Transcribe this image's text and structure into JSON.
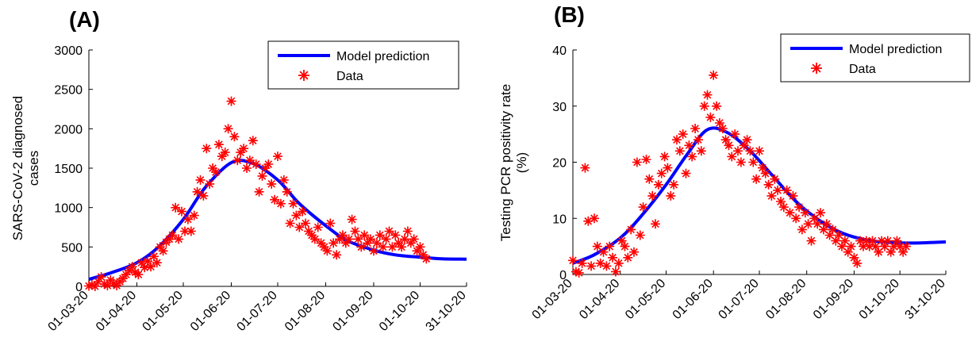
{
  "colors": {
    "model": "#0000ff",
    "data": "#ff0000",
    "axis": "#000000"
  },
  "chart_data": [
    {
      "type": "line",
      "panel_label": "(A)",
      "xlabel": "",
      "ylabel": [
        "SARS-CoV-2 diagnosed",
        "cases"
      ],
      "x_ticks": [
        "01-03-20",
        "01-04-20",
        "01-05-20",
        "01-06-20",
        "01-07-20",
        "01-08-20",
        "01-09-20",
        "01-10-20",
        "31-10-20"
      ],
      "y_ticks": [
        "0",
        "500",
        "1000",
        "1500",
        "2000",
        "2500",
        "3000"
      ],
      "xlim": [
        "2020-03-01",
        "2020-10-31"
      ],
      "ylim": [
        0,
        3000
      ],
      "legend": {
        "position": "top-right",
        "entries": [
          "Model prediction",
          "Data"
        ]
      },
      "series": [
        {
          "name": "Model prediction",
          "style": "line",
          "x": [
            "2020-03-01",
            "2020-03-15",
            "2020-04-01",
            "2020-04-15",
            "2020-05-01",
            "2020-05-15",
            "2020-06-01",
            "2020-06-15",
            "2020-07-01",
            "2020-07-15",
            "2020-08-01",
            "2020-08-15",
            "2020-09-01",
            "2020-09-15",
            "2020-10-01",
            "2020-10-15",
            "2020-10-31"
          ],
          "y": [
            90,
            170,
            300,
            500,
            850,
            1250,
            1570,
            1560,
            1350,
            1050,
            770,
            580,
            460,
            400,
            370,
            350,
            345
          ]
        },
        {
          "name": "Data",
          "style": "star",
          "x": [
            "2020-03-01",
            "2020-03-03",
            "2020-03-05",
            "2020-03-07",
            "2020-03-09",
            "2020-03-11",
            "2020-03-13",
            "2020-03-15",
            "2020-03-17",
            "2020-03-19",
            "2020-03-21",
            "2020-03-23",
            "2020-03-25",
            "2020-03-27",
            "2020-03-29",
            "2020-03-31",
            "2020-04-02",
            "2020-04-04",
            "2020-04-06",
            "2020-04-08",
            "2020-04-10",
            "2020-04-12",
            "2020-04-14",
            "2020-04-16",
            "2020-04-18",
            "2020-04-20",
            "2020-04-22",
            "2020-04-24",
            "2020-04-26",
            "2020-04-28",
            "2020-04-30",
            "2020-05-02",
            "2020-05-04",
            "2020-05-06",
            "2020-05-08",
            "2020-05-10",
            "2020-05-12",
            "2020-05-14",
            "2020-05-16",
            "2020-05-18",
            "2020-05-20",
            "2020-05-22",
            "2020-05-24",
            "2020-05-26",
            "2020-05-28",
            "2020-05-30",
            "2020-06-01",
            "2020-06-03",
            "2020-06-05",
            "2020-06-07",
            "2020-06-09",
            "2020-06-11",
            "2020-06-13",
            "2020-06-15",
            "2020-06-17",
            "2020-06-19",
            "2020-06-21",
            "2020-06-23",
            "2020-06-25",
            "2020-06-27",
            "2020-06-29",
            "2020-07-01",
            "2020-07-03",
            "2020-07-05",
            "2020-07-07",
            "2020-07-09",
            "2020-07-11",
            "2020-07-13",
            "2020-07-15",
            "2020-07-17",
            "2020-07-19",
            "2020-07-21",
            "2020-07-23",
            "2020-07-25",
            "2020-07-27",
            "2020-07-29",
            "2020-07-31",
            "2020-08-02",
            "2020-08-04",
            "2020-08-06",
            "2020-08-08",
            "2020-08-10",
            "2020-08-12",
            "2020-08-14",
            "2020-08-16",
            "2020-08-18",
            "2020-08-20",
            "2020-08-22",
            "2020-08-24",
            "2020-08-26",
            "2020-08-28",
            "2020-08-30",
            "2020-09-01",
            "2020-09-03",
            "2020-09-05",
            "2020-09-07",
            "2020-09-09",
            "2020-09-11",
            "2020-09-13",
            "2020-09-15",
            "2020-09-17",
            "2020-09-19",
            "2020-09-21",
            "2020-09-23",
            "2020-09-25",
            "2020-09-27",
            "2020-09-29",
            "2020-10-01",
            "2020-10-03",
            "2020-10-05"
          ],
          "y": [
            5,
            20,
            0,
            60,
            120,
            30,
            10,
            80,
            40,
            10,
            60,
            100,
            150,
            200,
            250,
            180,
            150,
            300,
            240,
            320,
            250,
            380,
            300,
            500,
            450,
            560,
            600,
            650,
            1000,
            600,
            950,
            700,
            850,
            700,
            900,
            1200,
            1350,
            1150,
            1750,
            1300,
            1500,
            1450,
            1800,
            1650,
            1700,
            2000,
            2350,
            1900,
            1600,
            1700,
            1750,
            1500,
            1600,
            1850,
            1550,
            1200,
            1400,
            1500,
            1550,
            1300,
            1100,
            1650,
            1050,
            1350,
            1200,
            800,
            1050,
            900,
            750,
            950,
            800,
            700,
            650,
            600,
            750,
            550,
            500,
            450,
            800,
            550,
            400,
            600,
            650,
            550,
            600,
            850,
            700,
            600,
            500,
            650,
            550,
            600,
            450,
            550,
            650,
            500,
            600,
            700,
            500,
            650,
            550,
            500,
            600,
            700,
            550,
            600,
            450,
            500,
            400,
            350
          ]
        }
      ]
    },
    {
      "type": "line",
      "panel_label": "(B)",
      "xlabel": "",
      "ylabel": [
        "Testing PCR positivity rate",
        "(%)"
      ],
      "x_ticks": [
        "01-03-20",
        "01-04-20",
        "01-05-20",
        "01-06-20",
        "01-07-20",
        "01-08-20",
        "01-09-20",
        "01-10-20",
        "31-10-20"
      ],
      "y_ticks": [
        "0",
        "10",
        "20",
        "30",
        "40"
      ],
      "xlim": [
        "2020-03-01",
        "2020-10-31"
      ],
      "ylim": [
        0,
        40
      ],
      "legend": {
        "position": "top-right",
        "entries": [
          "Model prediction",
          "Data"
        ]
      },
      "series": [
        {
          "name": "Model prediction",
          "style": "line",
          "x": [
            "2020-03-01",
            "2020-03-15",
            "2020-04-01",
            "2020-04-15",
            "2020-05-01",
            "2020-05-15",
            "2020-05-28",
            "2020-06-10",
            "2020-06-25",
            "2020-07-10",
            "2020-07-25",
            "2020-08-10",
            "2020-08-25",
            "2020-09-10",
            "2020-09-25",
            "2020-10-10",
            "2020-10-31"
          ],
          "y": [
            2,
            3.5,
            6.5,
            10.5,
            16,
            21.5,
            25.8,
            25.3,
            22,
            17.5,
            13,
            9.5,
            7.3,
            6.1,
            5.7,
            5.6,
            5.8
          ]
        },
        {
          "name": "Data",
          "style": "star",
          "x": [
            "2020-03-01",
            "2020-03-03",
            "2020-03-05",
            "2020-03-07",
            "2020-03-09",
            "2020-03-11",
            "2020-03-13",
            "2020-03-15",
            "2020-03-17",
            "2020-03-19",
            "2020-03-21",
            "2020-03-23",
            "2020-03-25",
            "2020-03-27",
            "2020-03-29",
            "2020-03-31",
            "2020-04-02",
            "2020-04-04",
            "2020-04-06",
            "2020-04-08",
            "2020-04-10",
            "2020-04-12",
            "2020-04-14",
            "2020-04-16",
            "2020-04-18",
            "2020-04-20",
            "2020-04-22",
            "2020-04-24",
            "2020-04-26",
            "2020-04-28",
            "2020-04-30",
            "2020-05-02",
            "2020-05-04",
            "2020-05-06",
            "2020-05-08",
            "2020-05-10",
            "2020-05-12",
            "2020-05-14",
            "2020-05-16",
            "2020-05-18",
            "2020-05-20",
            "2020-05-22",
            "2020-05-24",
            "2020-05-26",
            "2020-05-28",
            "2020-05-30",
            "2020-06-01",
            "2020-06-03",
            "2020-06-05",
            "2020-06-07",
            "2020-06-09",
            "2020-06-11",
            "2020-06-13",
            "2020-06-15",
            "2020-06-17",
            "2020-06-19",
            "2020-06-21",
            "2020-06-23",
            "2020-06-25",
            "2020-06-27",
            "2020-06-29",
            "2020-07-01",
            "2020-07-03",
            "2020-07-05",
            "2020-07-07",
            "2020-07-09",
            "2020-07-11",
            "2020-07-13",
            "2020-07-15",
            "2020-07-17",
            "2020-07-19",
            "2020-07-21",
            "2020-07-23",
            "2020-07-25",
            "2020-07-27",
            "2020-07-29",
            "2020-07-31",
            "2020-08-02",
            "2020-08-04",
            "2020-08-06",
            "2020-08-08",
            "2020-08-10",
            "2020-08-12",
            "2020-08-14",
            "2020-08-16",
            "2020-08-18",
            "2020-08-20",
            "2020-08-22",
            "2020-08-24",
            "2020-08-26",
            "2020-08-28",
            "2020-08-30",
            "2020-09-01",
            "2020-09-03",
            "2020-09-05",
            "2020-09-07",
            "2020-09-09",
            "2020-09-11",
            "2020-09-13",
            "2020-09-15",
            "2020-09-17",
            "2020-09-19",
            "2020-09-21",
            "2020-09-23",
            "2020-09-25",
            "2020-09-27",
            "2020-09-29",
            "2020-10-01",
            "2020-10-03",
            "2020-10-05"
          ],
          "y": [
            2.5,
            0.5,
            0.3,
            2,
            19,
            9.5,
            1.5,
            10,
            5,
            2,
            4,
            1.5,
            5,
            3,
            0.5,
            2,
            6,
            5,
            3,
            8,
            4,
            20,
            7,
            12,
            20.5,
            17,
            14,
            9,
            16,
            18,
            21,
            19,
            14,
            16,
            24,
            22,
            25,
            18,
            23,
            21,
            26,
            24,
            22,
            30,
            32,
            28,
            35.5,
            30,
            27,
            26,
            24,
            23,
            21,
            25,
            22,
            20,
            23,
            24,
            22,
            20,
            17,
            22,
            19,
            18,
            16,
            14,
            17,
            15,
            13,
            12,
            15,
            11,
            14,
            10,
            12,
            8,
            11,
            9,
            6,
            10,
            9,
            11,
            8,
            9,
            7,
            8,
            6,
            7,
            5,
            6,
            4,
            5,
            3,
            2,
            6,
            5,
            6,
            5,
            6,
            5,
            4,
            6,
            5,
            6,
            4,
            5,
            6,
            5,
            4,
            5
          ]
        }
      ]
    }
  ]
}
